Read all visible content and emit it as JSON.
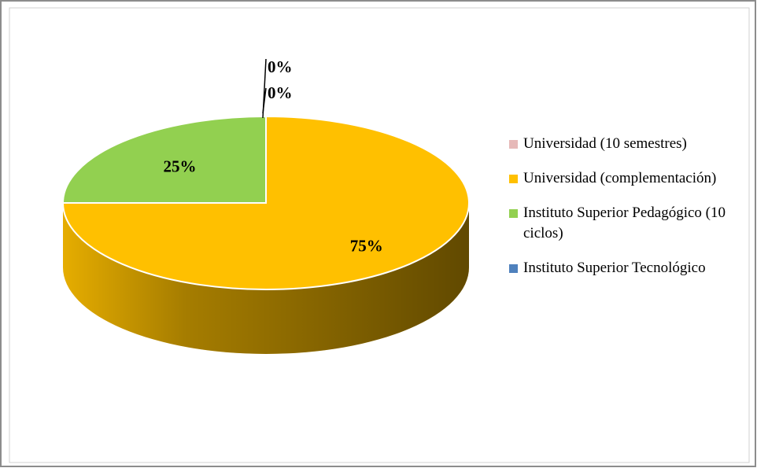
{
  "chart_data": {
    "type": "pie3d",
    "categories": [
      "Universidad (10 semestres)",
      "Universidad (complementación)",
      "Instituto Superior Pedagógico (10 ciclos)",
      "Instituto Superior Tecnológico"
    ],
    "values": [
      0,
      75,
      25,
      0
    ],
    "value_labels": [
      "0%",
      "75%",
      "25%",
      "0%"
    ],
    "colors": [
      "#e6b9b8",
      "#ffc000",
      "#92d050",
      "#4f81bd"
    ],
    "legend": "right"
  }
}
